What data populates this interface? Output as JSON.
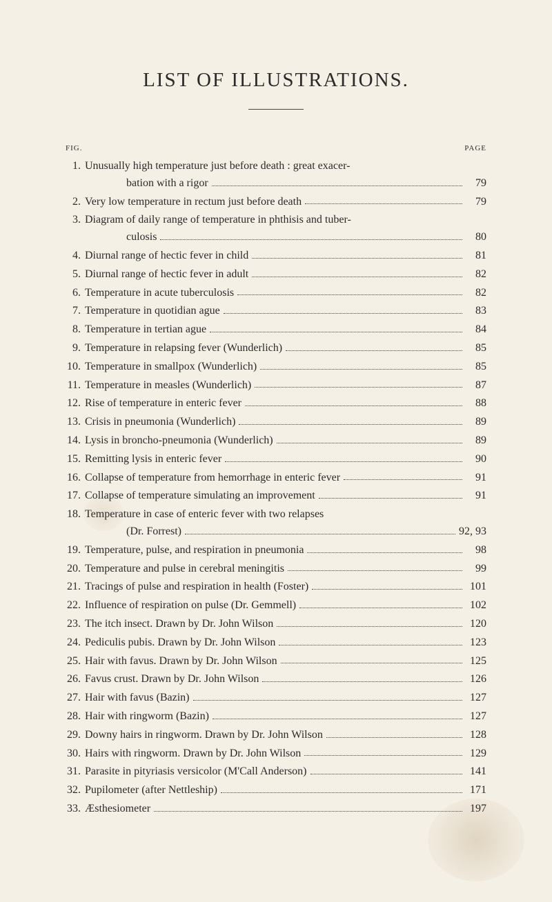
{
  "title": "LIST OF ILLUSTRATIONS.",
  "header_left": "FIG.",
  "header_right": "PAGE",
  "entries": [
    {
      "num": "1.",
      "text": "Unusually high temperature just before death : great exacer-",
      "cont": "bation with a rigor",
      "page": "79"
    },
    {
      "num": "2.",
      "text": "Very low temperature in rectum just before death",
      "page": "79"
    },
    {
      "num": "3.",
      "text": "Diagram of daily range of temperature in phthisis and tuber-",
      "cont": "culosis",
      "page": "80"
    },
    {
      "num": "4.",
      "text": "Diurnal range of hectic fever in child",
      "page": "81"
    },
    {
      "num": "5.",
      "text": "Diurnal range of hectic fever in adult",
      "page": "82"
    },
    {
      "num": "6.",
      "text": "Temperature in acute tuberculosis",
      "page": "82"
    },
    {
      "num": "7.",
      "text": "Temperature in quotidian ague",
      "page": "83"
    },
    {
      "num": "8.",
      "text": "Temperature in tertian ague",
      "page": "84"
    },
    {
      "num": "9.",
      "text": "Temperature in relapsing fever (Wunderlich)",
      "page": "85"
    },
    {
      "num": "10.",
      "text": "Temperature in smallpox (Wunderlich)",
      "page": "85"
    },
    {
      "num": "11.",
      "text": "Temperature in measles (Wunderlich)",
      "page": "87"
    },
    {
      "num": "12.",
      "text": "Rise of temperature in enteric fever",
      "page": "88"
    },
    {
      "num": "13.",
      "text": "Crisis in pneumonia (Wunderlich)",
      "page": "89"
    },
    {
      "num": "14.",
      "text": "Lysis in broncho-pneumonia (Wunderlich)",
      "page": "89"
    },
    {
      "num": "15.",
      "text": "Remitting lysis in enteric fever",
      "page": "90"
    },
    {
      "num": "16.",
      "text": "Collapse of temperature from hemorrhage in enteric fever",
      "page": "91"
    },
    {
      "num": "17.",
      "text": "Collapse of temperature simulating an improvement",
      "page": "91"
    },
    {
      "num": "18.",
      "text": "Temperature in case of enteric fever with two relapses",
      "cont": "(Dr. Forrest)",
      "page": "92, 93"
    },
    {
      "num": "19.",
      "text": "Temperature, pulse, and respiration in pneumonia",
      "page": "98"
    },
    {
      "num": "20.",
      "text": "Temperature and pulse in cerebral meningitis",
      "page": "99"
    },
    {
      "num": "21.",
      "text": "Tracings of pulse and respiration in health (Foster)",
      "page": "101"
    },
    {
      "num": "22.",
      "text": "Influence of respiration on pulse (Dr. Gemmell)",
      "page": "102"
    },
    {
      "num": "23.",
      "text": "The itch insect.   Drawn by Dr. John Wilson",
      "page": "120"
    },
    {
      "num": "24.",
      "text": "Pediculis pubis.   Drawn by Dr. John Wilson",
      "page": "123"
    },
    {
      "num": "25.",
      "text": "Hair with favus.   Drawn by Dr. John Wilson",
      "page": "125"
    },
    {
      "num": "26.",
      "text": "Favus crust.   Drawn by Dr. John Wilson",
      "page": "126"
    },
    {
      "num": "27.",
      "text": "Hair with favus (Bazin)",
      "page": "127"
    },
    {
      "num": "28.",
      "text": "Hair with ringworm (Bazin)",
      "page": "127"
    },
    {
      "num": "29.",
      "text": "Downy hairs in ringworm.   Drawn by Dr. John Wilson",
      "page": "128"
    },
    {
      "num": "30.",
      "text": "Hairs with ringworm.   Drawn by Dr. John Wilson",
      "page": "129"
    },
    {
      "num": "31.",
      "text": "Parasite in pityriasis versicolor (M'Call Anderson)",
      "page": "141"
    },
    {
      "num": "32.",
      "text": "Pupilometer (after Nettleship)",
      "page": "171"
    },
    {
      "num": "33.",
      "text": "Æsthesiometer",
      "page": "197"
    }
  ],
  "colors": {
    "background": "#f5f0e6",
    "text": "#2a2a2a",
    "dots": "#444444"
  },
  "typography": {
    "title_fontsize": 29,
    "body_fontsize": 16,
    "header_fontsize": 11,
    "font_family": "Times New Roman"
  }
}
